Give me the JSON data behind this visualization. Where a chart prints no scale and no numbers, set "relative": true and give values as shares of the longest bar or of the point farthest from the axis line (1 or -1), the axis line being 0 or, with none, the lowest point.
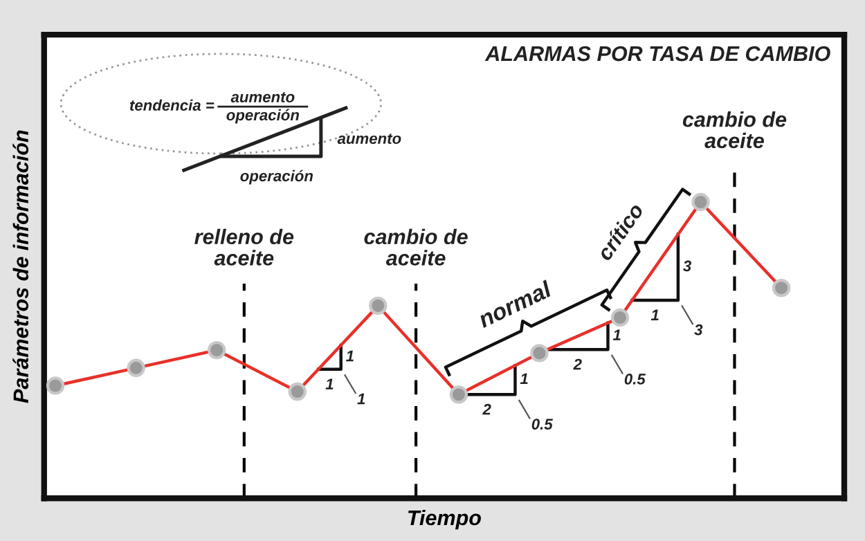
{
  "chart_data": {
    "type": "line",
    "title": "ALARMAS POR TASA DE CAMBIO",
    "xlabel": "Tiempo",
    "ylabel": "Parámetros de información",
    "categories": [
      null,
      null,
      null,
      null,
      null,
      null,
      null,
      null,
      null,
      null
    ],
    "relative": true,
    "series": [
      {
        "color": "#e8302a",
        "values": [
          0.38,
          0.44,
          0.5,
          0.36,
          0.65,
          0.35,
          0.49,
          0.61,
          1,
          0.71
        ]
      }
    ],
    "marker": "circle",
    "line_style": "solid",
    "grid": false,
    "legend": false,
    "tick_labels": false,
    "annotations": [
      "tendencia =",
      "aumento",
      "operación",
      "aumento",
      "operación",
      "normal",
      "crítico",
      "1",
      "1",
      "1",
      "2",
      "1",
      "0.5",
      "2",
      "1",
      "0.5",
      "1",
      "3",
      "3",
      "relleno de\naceite",
      "cambio de\naceite",
      "cambio de\naceite"
    ]
  }
}
